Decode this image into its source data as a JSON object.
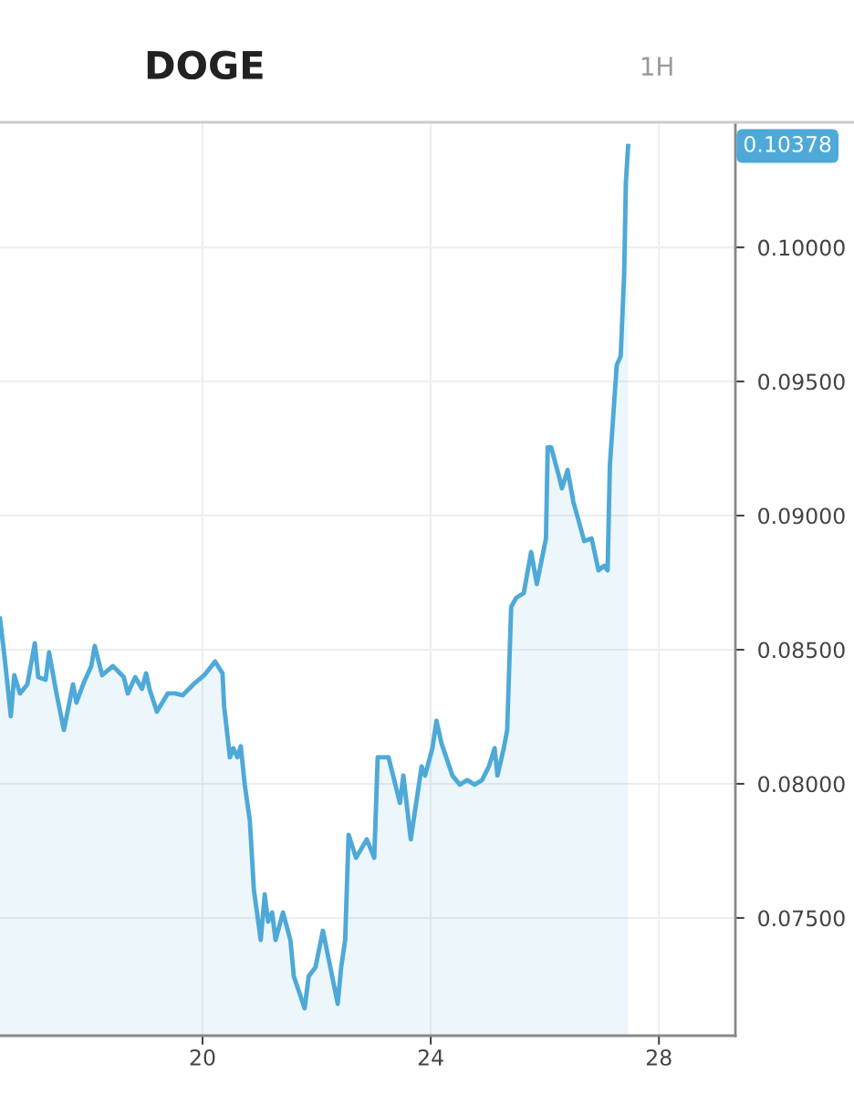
{
  "chart_data": {
    "type": "area",
    "title": "DOGE",
    "x": [
      16.45,
      16.53,
      16.64,
      16.7,
      16.8,
      16.93,
      17.06,
      17.12,
      17.25,
      17.31,
      17.44,
      17.57,
      17.73,
      17.79,
      17.92,
      18.05,
      18.11,
      18.24,
      18.43,
      18.62,
      18.69,
      18.82,
      18.94,
      19.01,
      19.07,
      19.2,
      19.39,
      19.52,
      19.65,
      19.84,
      20.03,
      20.22,
      20.35,
      20.38,
      20.48,
      20.54,
      20.61,
      20.67,
      20.74,
      20.83,
      20.9,
      21.02,
      21.09,
      21.15,
      21.22,
      21.28,
      21.41,
      21.54,
      21.6,
      21.79,
      21.86,
      21.98,
      22.11,
      22.24,
      22.37,
      22.43,
      22.5,
      22.56,
      22.69,
      22.88,
      23.01,
      23.07,
      23.26,
      23.46,
      23.52,
      23.65,
      23.84,
      23.9,
      24.03,
      24.1,
      24.19,
      24.38,
      24.51,
      24.64,
      24.77,
      24.9,
      25.02,
      25.12,
      25.17,
      25.28,
      25.34,
      25.41,
      25.5,
      25.63,
      25.76,
      25.86,
      26.02,
      26.05,
      26.11,
      26.24,
      26.3,
      26.4,
      26.5,
      26.59,
      26.69,
      26.82,
      26.94,
      27.04,
      27.1,
      27.14,
      27.26,
      27.33,
      27.39,
      27.42,
      27.46
    ],
    "series": [
      {
        "color": "#4ea9d8",
        "values": [
          0.08616,
          0.08473,
          0.08252,
          0.08405,
          0.08337,
          0.08371,
          0.08524,
          0.08398,
          0.08388,
          0.0849,
          0.08337,
          0.08201,
          0.08371,
          0.08303,
          0.08378,
          0.08439,
          0.08514,
          0.08405,
          0.08439,
          0.08398,
          0.08337,
          0.08398,
          0.08354,
          0.08412,
          0.08354,
          0.08269,
          0.08337,
          0.08337,
          0.0833,
          0.08371,
          0.08405,
          0.08456,
          0.08412,
          0.08286,
          0.08099,
          0.08133,
          0.08099,
          0.0814,
          0.07997,
          0.07861,
          0.07605,
          0.07418,
          0.07588,
          0.07486,
          0.0752,
          0.07418,
          0.0752,
          0.07418,
          0.07282,
          0.07163,
          0.07282,
          0.07316,
          0.07452,
          0.07316,
          0.0718,
          0.07316,
          0.07418,
          0.0781,
          0.07724,
          0.07793,
          0.07724,
          0.08099,
          0.08099,
          0.07929,
          0.08031,
          0.07793,
          0.08065,
          0.08031,
          0.08133,
          0.08235,
          0.0815,
          0.08031,
          0.07997,
          0.08014,
          0.07997,
          0.08014,
          0.08065,
          0.08133,
          0.08031,
          0.08133,
          0.08201,
          0.0866,
          0.08694,
          0.08711,
          0.08864,
          0.08745,
          0.08915,
          0.09255,
          0.09255,
          0.09153,
          0.09102,
          0.0917,
          0.09051,
          0.08983,
          0.08905,
          0.08915,
          0.08796,
          0.08813,
          0.08796,
          0.09187,
          0.09561,
          0.09595,
          0.09901,
          0.10241,
          0.10378
        ]
      }
    ],
    "xlim": [
      16.45,
      29.34
    ],
    "xticks": [
      20,
      24,
      28
    ],
    "ylim": [
      0.07061,
      0.10463
    ],
    "yticks": [
      {
        "value": 0.075,
        "label": "0.07500"
      },
      {
        "value": 0.08,
        "label": "0.08000"
      },
      {
        "value": 0.085,
        "label": "0.08500"
      },
      {
        "value": 0.09,
        "label": "0.09000"
      },
      {
        "value": 0.095,
        "label": "0.09500"
      },
      {
        "value": 0.1,
        "label": "0.10000"
      }
    ],
    "grid": true,
    "annotations": [
      "1H",
      "0.10378"
    ]
  }
}
